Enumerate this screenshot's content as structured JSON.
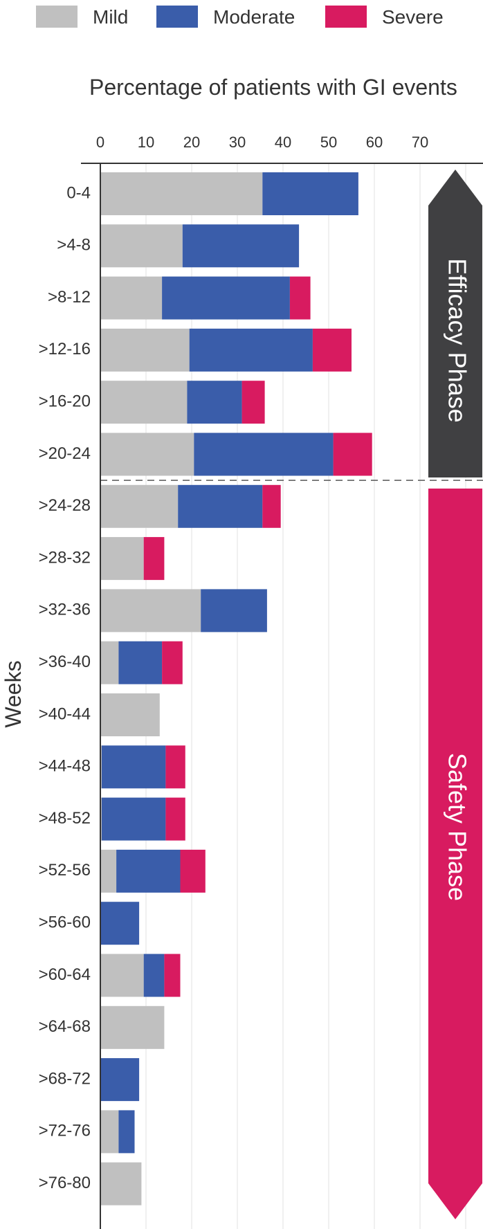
{
  "chart_data": {
    "type": "bar",
    "orientation": "horizontal",
    "stacked": true,
    "title": "Percentage of patients with GI events",
    "ylabel": "Weeks",
    "xlabel": "",
    "xlim": [
      0,
      80
    ],
    "x_ticks": [
      0,
      10,
      20,
      30,
      40,
      50,
      60,
      70
    ],
    "grid": true,
    "legend_position": "top",
    "categories": [
      "0-4",
      ">4-8",
      ">8-12",
      ">12-16",
      ">16-20",
      ">20-24",
      ">24-28",
      ">28-32",
      ">32-36",
      ">36-40",
      ">40-44",
      ">44-48",
      ">48-52",
      ">52-56",
      ">56-60",
      ">60-64",
      ">64-68",
      ">68-72",
      ">72-76",
      ">76-80"
    ],
    "series": [
      {
        "name": "Mild",
        "color": "#c0c0c0",
        "values": [
          35.5,
          18,
          13.5,
          19.5,
          19,
          20.5,
          17,
          9.5,
          22,
          4,
          13,
          0.3,
          0.3,
          3.5,
          0,
          9.5,
          14,
          0,
          4,
          9
        ]
      },
      {
        "name": "Moderate",
        "color": "#3a5daa",
        "values": [
          21,
          25.5,
          28,
          27,
          12,
          30.5,
          18.5,
          0,
          14.5,
          9.5,
          0,
          14,
          14,
          14,
          8.5,
          4.5,
          0,
          8.5,
          3.5,
          0
        ]
      },
      {
        "name": "Severe",
        "color": "#d81b60",
        "values": [
          0,
          0,
          4.5,
          8.5,
          5,
          8.5,
          4,
          4.5,
          0,
          4.5,
          0,
          4.3,
          4.3,
          5.5,
          0,
          3.5,
          0,
          0,
          0,
          0
        ]
      }
    ],
    "phases": [
      {
        "label": "Efficacy Phase",
        "color": "#404042",
        "from": "0-4",
        "to": ">20-24"
      },
      {
        "label": "Safety Phase",
        "color": "#d81b60",
        "from": ">24-28",
        "to": ">76-80"
      }
    ]
  }
}
